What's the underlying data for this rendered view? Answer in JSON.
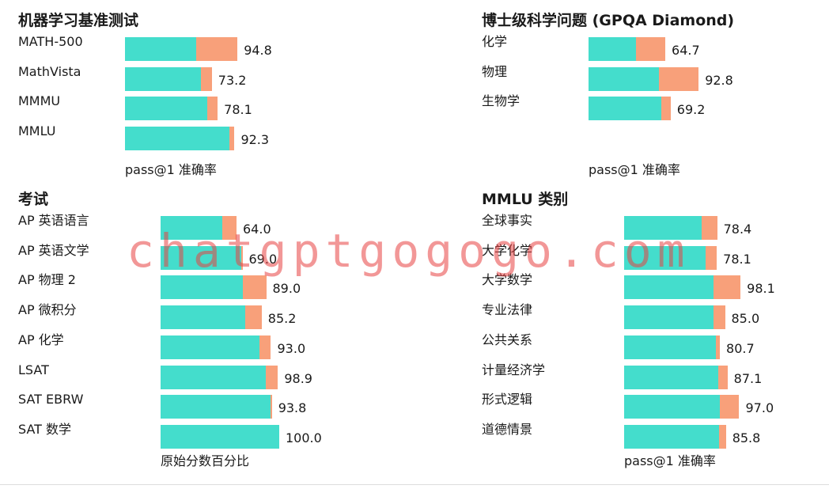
{
  "colors": {
    "base": "#44ddcc",
    "gain": "#f8a07a",
    "watermark": "#e84242"
  },
  "watermark": "chatgptgogogo.com",
  "chart_data": [
    {
      "type": "bar",
      "orientation": "horizontal",
      "stacked": true,
      "title": "机器学习基准测试",
      "xlabel": "pass@1 准确率",
      "xlim": [
        0,
        100
      ],
      "categories": [
        "MATH-500",
        "MathVista",
        "MMMU",
        "MMLU"
      ],
      "series": [
        {
          "values": [
            60.3,
            63.8,
            69.1,
            88.0
          ]
        },
        {
          "values": [
            34.5,
            9.4,
            9.0,
            4.3
          ]
        }
      ],
      "totals": [
        "94.8",
        "73.2",
        "78.1",
        "92.3"
      ],
      "grid": false,
      "legend": "none"
    },
    {
      "type": "bar",
      "orientation": "horizontal",
      "stacked": true,
      "title": "博士级科学问题 (GPQA Diamond)",
      "xlabel": "pass@1 准确率",
      "xlim": [
        0,
        100
      ],
      "categories": [
        "化学",
        "物理",
        "生物学"
      ],
      "series": [
        {
          "values": [
            40.2,
            59.5,
            61.6
          ]
        },
        {
          "values": [
            24.5,
            33.3,
            7.6
          ]
        }
      ],
      "totals": [
        "64.7",
        "92.8",
        "69.2"
      ],
      "grid": false,
      "legend": "none"
    },
    {
      "type": "bar",
      "orientation": "horizontal",
      "stacked": true,
      "title": "考试",
      "xlabel": "原始分数百分比",
      "xlim": [
        0,
        100
      ],
      "categories": [
        "AP 英语语言",
        "AP 英语文学",
        "AP 物理 2",
        "AP 微积分",
        "AP 化学",
        "LSAT",
        "SAT EBRW",
        "SAT 数学"
      ],
      "series": [
        {
          "values": [
            52.0,
            68.0,
            69.0,
            71.3,
            83.4,
            88.4,
            92.6,
            100.0
          ]
        },
        {
          "values": [
            12.0,
            1.0,
            20.0,
            13.9,
            9.6,
            10.5,
            1.2,
            0.0
          ]
        }
      ],
      "totals": [
        "64.0",
        "69.0",
        "89.0",
        "85.2",
        "93.0",
        "98.9",
        "93.8",
        "100.0"
      ],
      "grid": false,
      "legend": "none"
    },
    {
      "type": "bar",
      "orientation": "horizontal",
      "stacked": true,
      "title": "MMLU 类别",
      "xlabel": "pass@1 准确率",
      "xlim": [
        0,
        100
      ],
      "categories": [
        "全球事实",
        "大学化学",
        "大学数学",
        "专业法律",
        "公共关系",
        "计量经济学",
        "形式逻辑",
        "道德情景"
      ],
      "series": [
        {
          "values": [
            65.6,
            68.7,
            75.3,
            75.0,
            77.3,
            79.4,
            80.6,
            80.0
          ]
        },
        {
          "values": [
            12.8,
            9.4,
            22.8,
            10.0,
            3.4,
            7.7,
            16.4,
            5.8
          ]
        }
      ],
      "totals": [
        "78.4",
        "78.1",
        "98.1",
        "85.0",
        "80.7",
        "87.1",
        "97.0",
        "85.8"
      ],
      "grid": false,
      "legend": "none"
    }
  ]
}
